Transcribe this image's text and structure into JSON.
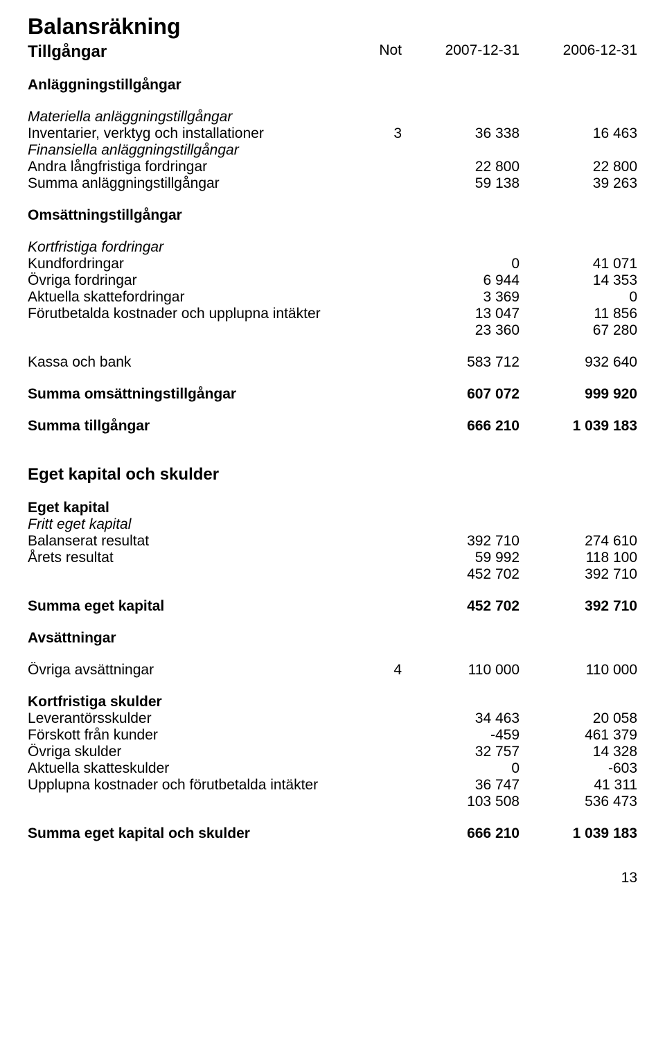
{
  "title": "Balansräkning",
  "header": {
    "not": "Not",
    "colA": "2007-12-31",
    "colB": "2006-12-31"
  },
  "s1": "Tillgångar",
  "s2": "Anläggningstillgångar",
  "s3": "Materiella anläggningstillgångar",
  "r_inv": {
    "label": "Inventarier, verktyg och installationer",
    "not": "3",
    "a": "36 338",
    "b": "16 463"
  },
  "s4": "Finansiella anläggningstillgångar",
  "r_lang": {
    "label": "Andra långfristiga fordringar",
    "a": "22 800",
    "b": "22 800"
  },
  "r_summaAnl": {
    "label": "Summa anläggningstillgångar",
    "a": "59 138",
    "b": "39 263"
  },
  "s5": "Omsättningstillgångar",
  "s6": "Kortfristiga fordringar",
  "r_kund": {
    "label": "Kundfordringar",
    "a": "0",
    "b": "41 071"
  },
  "r_ovrFord": {
    "label": "Övriga fordringar",
    "a": "6 944",
    "b": "14 353"
  },
  "r_aktSkF": {
    "label": "Aktuella skattefordringar",
    "a": "3 369",
    "b": "0"
  },
  "r_forut": {
    "label": "Förutbetalda kostnader och upplupna intäkter",
    "a": "13 047",
    "b": "11 856"
  },
  "r_sub1": {
    "a": "23 360",
    "b": "67 280"
  },
  "r_kassa": {
    "label": "Kassa och bank",
    "a": "583 712",
    "b": "932 640"
  },
  "r_summaOms": {
    "label": "Summa omsättningstillgångar",
    "a": "607 072",
    "b": "999 920"
  },
  "r_summaTill": {
    "label": "Summa tillgångar",
    "a": "666 210",
    "b": "1 039 183"
  },
  "s7": "Eget kapital och skulder",
  "s8": "Eget kapital",
  "s9": "Fritt eget kapital",
  "r_bal": {
    "label": "Balanserat resultat",
    "a": "392 710",
    "b": "274 610"
  },
  "r_arets": {
    "label": "Årets resultat",
    "a": "59 992",
    "b": "118 100"
  },
  "r_sub2": {
    "a": "452 702",
    "b": "392 710"
  },
  "r_summaEK": {
    "label": "Summa eget kapital",
    "a": "452 702",
    "b": "392 710"
  },
  "s10": "Avsättningar",
  "r_ovrAvs": {
    "label": "Övriga avsättningar",
    "not": "4",
    "a": "110 000",
    "b": "110 000"
  },
  "s11": "Kortfristiga skulder",
  "r_lev": {
    "label": "Leverantörsskulder",
    "a": "34 463",
    "b": "20 058"
  },
  "r_forsk": {
    "label": "Förskott från kunder",
    "a": "-459",
    "b": "461 379"
  },
  "r_ovrSk": {
    "label": "Övriga skulder",
    "a": "32 757",
    "b": "14 328"
  },
  "r_aktSkS": {
    "label": "Aktuella skatteskulder",
    "a": "0",
    "b": "-603"
  },
  "r_uppl": {
    "label": "Upplupna kostnader och förutbetalda intäkter",
    "a": "36 747",
    "b": "41 311"
  },
  "r_sub3": {
    "a": "103 508",
    "b": "536 473"
  },
  "r_summaEKS": {
    "label": "Summa eget kapital och skulder",
    "a": "666 210",
    "b": "1 039 183"
  },
  "pageNum": "13"
}
